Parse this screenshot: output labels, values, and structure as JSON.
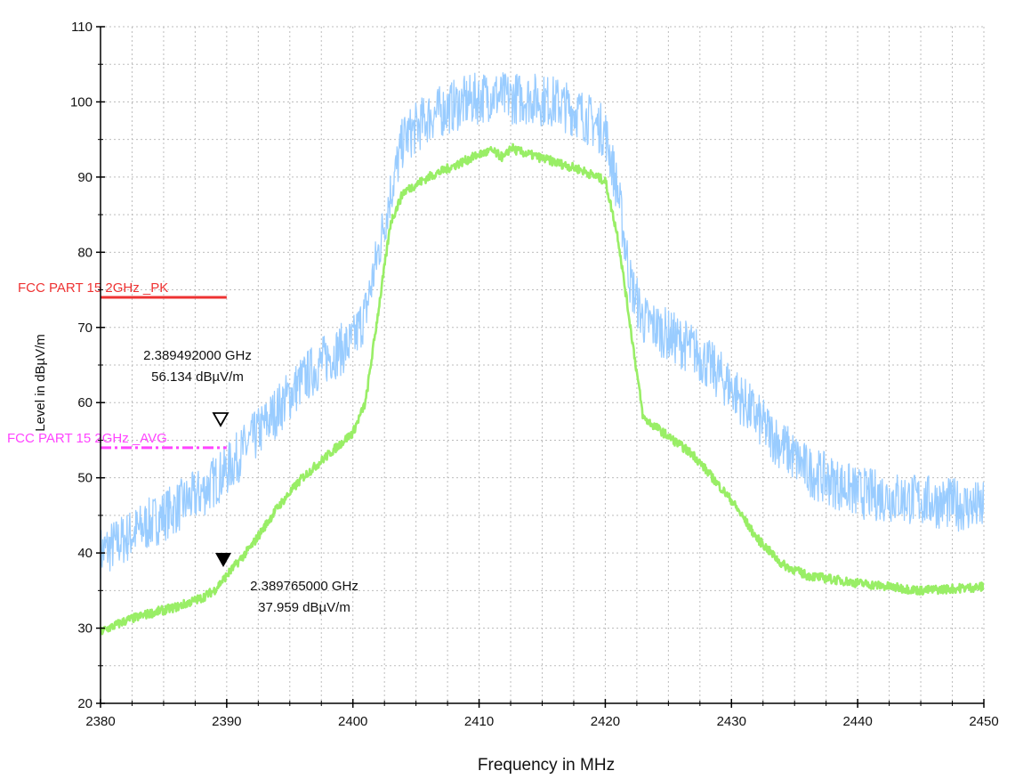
{
  "chart_data": {
    "type": "line",
    "title": "",
    "xlabel": "Frequency in MHz",
    "ylabel": "Level in dBµV/m",
    "xlim": [
      2380,
      2450
    ],
    "ylim": [
      20,
      110
    ],
    "x_ticks": [
      2380,
      2390,
      2400,
      2410,
      2420,
      2430,
      2440,
      2450
    ],
    "y_ticks": [
      20,
      30,
      40,
      50,
      60,
      70,
      80,
      90,
      100,
      110
    ],
    "x_minor_step": 2.5,
    "y_minor_step": 5,
    "grid": true,
    "legend": "none",
    "series": [
      {
        "role": "peak",
        "color": "#99ccff",
        "x": [
          2380,
          2382,
          2384,
          2386,
          2388,
          2390,
          2392,
          2394,
          2396,
          2398,
          2400,
          2401,
          2402,
          2403,
          2404,
          2406,
          2408,
          2410,
          2411,
          2412,
          2414,
          2416,
          2418,
          2420,
          2421,
          2422,
          2423,
          2425,
          2427,
          2430,
          2433,
          2436,
          2440,
          2445,
          2450
        ],
        "y": [
          40,
          42,
          44,
          46,
          48,
          51,
          55,
          59,
          63,
          66,
          68,
          72,
          80,
          88,
          95,
          98,
          99.5,
          100.5,
          101,
          100.5,
          100.5,
          100,
          98.5,
          96,
          88,
          76,
          71,
          69,
          67,
          62,
          56,
          51,
          48,
          47,
          46
        ],
        "spread": 3.5
      },
      {
        "role": "average",
        "color": "#99ee66",
        "x": [
          2380,
          2382,
          2384,
          2386,
          2388,
          2389,
          2390,
          2392,
          2394,
          2396,
          2398,
          2400,
          2401,
          2402,
          2403,
          2404,
          2406,
          2408,
          2410,
          2411,
          2412,
          2412.5,
          2413,
          2414,
          2416,
          2418,
          2420,
          2421,
          2422,
          2423,
          2425,
          2427,
          2430,
          2432,
          2434,
          2436,
          2440,
          2445,
          2450
        ],
        "y": [
          29.5,
          31,
          32,
          32.8,
          34,
          35,
          37,
          41,
          46,
          50,
          53,
          56,
          60,
          72,
          84,
          88,
          90,
          91.5,
          93,
          93.5,
          92.5,
          94,
          93.5,
          93,
          92,
          91,
          89.5,
          82,
          70,
          58,
          55.5,
          53,
          47,
          42,
          38.5,
          37,
          36,
          35,
          35.5
        ],
        "spread": 0.6
      }
    ],
    "limit_lines": [
      {
        "label": "FCC PART 15 2GHz _PK",
        "value": 74,
        "x_end": 2390,
        "color": "#ee3333",
        "style": "solid"
      },
      {
        "label": "FCC PART 15 2GHz _AVG",
        "value": 54,
        "x_end": 2390,
        "color": "#ff44ff",
        "style": "dash-dot"
      }
    ],
    "markers": [
      {
        "x": 2389.492,
        "y": 56.134,
        "marker": "open-triangle-down",
        "text_freq": "2.389492000 GHz",
        "text_level": "56.134 dBµV/m"
      },
      {
        "x": 2389.765,
        "y": 37.959,
        "marker": "filled-triangle-down",
        "text_freq": "2.389765000 GHz",
        "text_level": "37.959 dBµV/m"
      }
    ]
  }
}
